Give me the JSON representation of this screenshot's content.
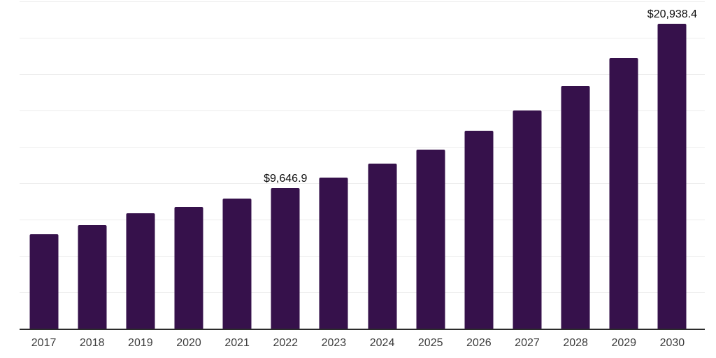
{
  "chart_data": {
    "type": "bar",
    "title": "",
    "xlabel": "",
    "ylabel": "",
    "categories": [
      "2017",
      "2018",
      "2019",
      "2020",
      "2021",
      "2022",
      "2023",
      "2024",
      "2025",
      "2026",
      "2027",
      "2028",
      "2029",
      "2030"
    ],
    "values": [
      6500,
      7130,
      7940,
      8370,
      8950,
      9646.9,
      10390,
      11340,
      12300,
      13590,
      15020,
      16700,
      18610,
      20938.4
    ],
    "data_labels": {
      "2022": "$9,646.9",
      "2030": "$20,938.4"
    },
    "ylim": [
      0,
      22500
    ],
    "gridline_interval": 2500,
    "grid": true,
    "legend": "none",
    "bar_color": "#36114B",
    "axis_color": "#2b2b2b",
    "gridline_color": "#ededed",
    "data_label_color": "#0d0d0d",
    "tick_label_color": "#3d3d3d"
  }
}
